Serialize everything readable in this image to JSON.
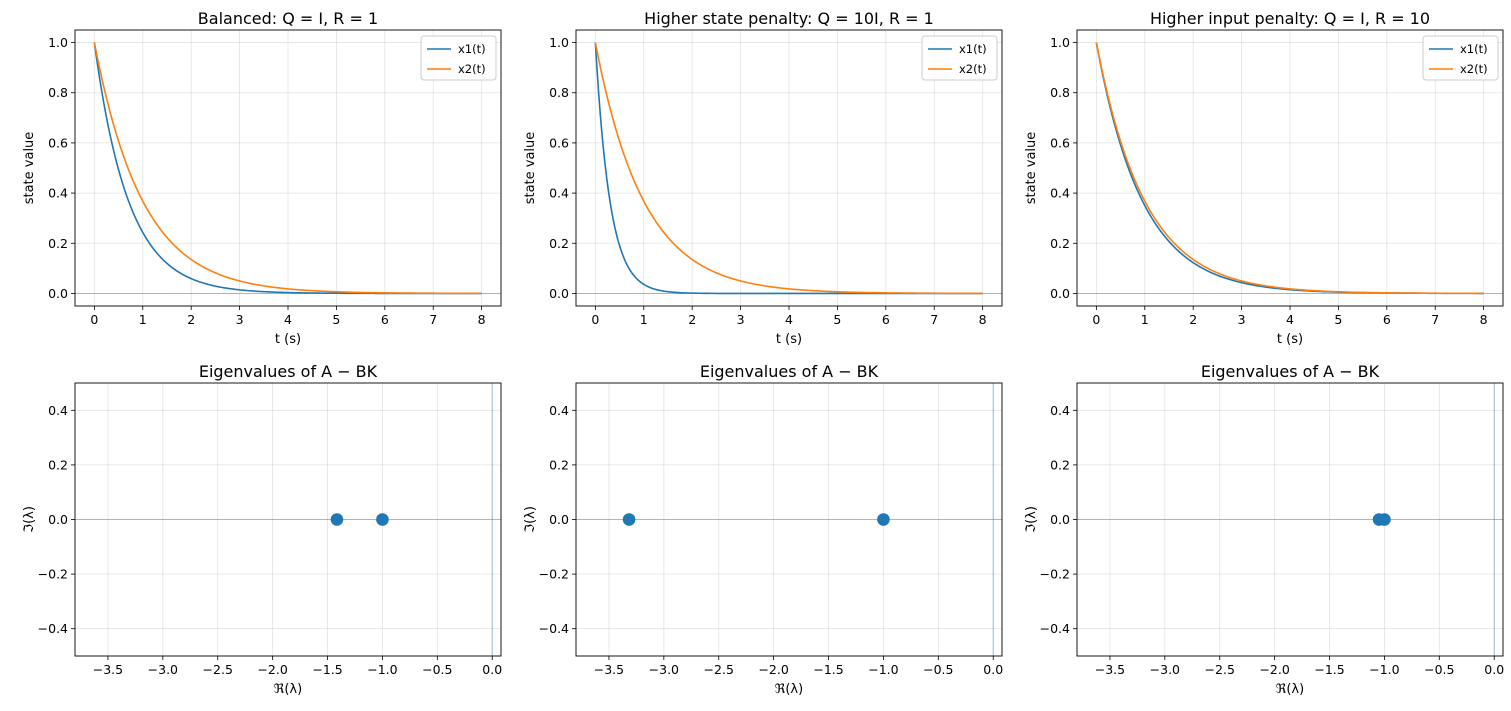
{
  "chart_data": [
    {
      "type": "line",
      "title": "Balanced: Q = I, R = 1",
      "xlabel": "t (s)",
      "ylabel": "state value",
      "xlim": [
        -0.4,
        8.4
      ],
      "ylim": [
        -0.05,
        1.05
      ],
      "xticks": [
        0,
        1,
        2,
        3,
        4,
        5,
        6,
        7,
        8
      ],
      "yticks": [
        0.0,
        0.2,
        0.4,
        0.6,
        0.8,
        1.0
      ],
      "legend": "top-right",
      "grid": true,
      "series": [
        {
          "name": "x1(t)",
          "color": "#1f77b4",
          "rate": 1.4142,
          "x": [
            0,
            8
          ],
          "y0": 1.0
        },
        {
          "name": "x2(t)",
          "color": "#ff7f0e",
          "rate": 1.0,
          "x": [
            0,
            8
          ],
          "y0": 1.0
        }
      ]
    },
    {
      "type": "line",
      "title": "Higher state penalty: Q = 10I, R = 1",
      "xlabel": "t (s)",
      "ylabel": "state value",
      "xlim": [
        -0.4,
        8.4
      ],
      "ylim": [
        -0.05,
        1.05
      ],
      "xticks": [
        0,
        1,
        2,
        3,
        4,
        5,
        6,
        7,
        8
      ],
      "yticks": [
        0.0,
        0.2,
        0.4,
        0.6,
        0.8,
        1.0
      ],
      "legend": "top-right",
      "grid": true,
      "series": [
        {
          "name": "x1(t)",
          "color": "#1f77b4",
          "rate": 3.3166,
          "x": [
            0,
            8
          ],
          "y0": 1.0
        },
        {
          "name": "x2(t)",
          "color": "#ff7f0e",
          "rate": 1.0,
          "x": [
            0,
            8
          ],
          "y0": 1.0
        }
      ]
    },
    {
      "type": "line",
      "title": "Higher input penalty: Q = I, R = 10",
      "xlabel": "t (s)",
      "ylabel": "state value",
      "xlim": [
        -0.4,
        8.4
      ],
      "ylim": [
        -0.05,
        1.05
      ],
      "xticks": [
        0,
        1,
        2,
        3,
        4,
        5,
        6,
        7,
        8
      ],
      "yticks": [
        0.0,
        0.2,
        0.4,
        0.6,
        0.8,
        1.0
      ],
      "legend": "top-right",
      "grid": true,
      "series": [
        {
          "name": "x1(t)",
          "color": "#1f77b4",
          "rate": 1.0488,
          "x": [
            0,
            8
          ],
          "y0": 1.0
        },
        {
          "name": "x2(t)",
          "color": "#ff7f0e",
          "rate": 1.0,
          "x": [
            0,
            8
          ],
          "y0": 1.0
        }
      ]
    },
    {
      "type": "scatter",
      "title": "Eigenvalues of A − BK",
      "xlabel": "ℜ(λ)",
      "ylabel": "ℑ(λ)",
      "xlim": [
        -3.8,
        0.08
      ],
      "ylim": [
        -0.5,
        0.5
      ],
      "xticks": [
        -3.5,
        -3.0,
        -2.5,
        -2.0,
        -1.5,
        -1.0,
        -0.5,
        0.0
      ],
      "yticks": [
        -0.4,
        -0.2,
        0.0,
        0.2,
        0.4
      ],
      "grid": true,
      "color": "#1f77b4",
      "points": [
        {
          "re": -1.4142,
          "im": 0.0
        },
        {
          "re": -1.0,
          "im": 0.0
        }
      ]
    },
    {
      "type": "scatter",
      "title": "Eigenvalues of A − BK",
      "xlabel": "ℜ(λ)",
      "ylabel": "ℑ(λ)",
      "xlim": [
        -3.8,
        0.08
      ],
      "ylim": [
        -0.5,
        0.5
      ],
      "xticks": [
        -3.5,
        -3.0,
        -2.5,
        -2.0,
        -1.5,
        -1.0,
        -0.5,
        0.0
      ],
      "yticks": [
        -0.4,
        -0.2,
        0.0,
        0.2,
        0.4
      ],
      "grid": true,
      "color": "#1f77b4",
      "points": [
        {
          "re": -3.3166,
          "im": 0.0
        },
        {
          "re": -1.0,
          "im": 0.0
        }
      ]
    },
    {
      "type": "scatter",
      "title": "Eigenvalues of A − BK",
      "xlabel": "ℜ(λ)",
      "ylabel": "ℑ(λ)",
      "xlim": [
        -3.8,
        0.08
      ],
      "ylim": [
        -0.5,
        0.5
      ],
      "xticks": [
        -3.5,
        -3.0,
        -2.5,
        -2.0,
        -1.5,
        -1.0,
        -0.5,
        0.0
      ],
      "yticks": [
        -0.4,
        -0.2,
        0.0,
        0.2,
        0.4
      ],
      "grid": true,
      "color": "#1f77b4",
      "points": [
        {
          "re": -1.0488,
          "im": 0.0
        },
        {
          "re": -1.0,
          "im": 0.0
        }
      ]
    }
  ]
}
